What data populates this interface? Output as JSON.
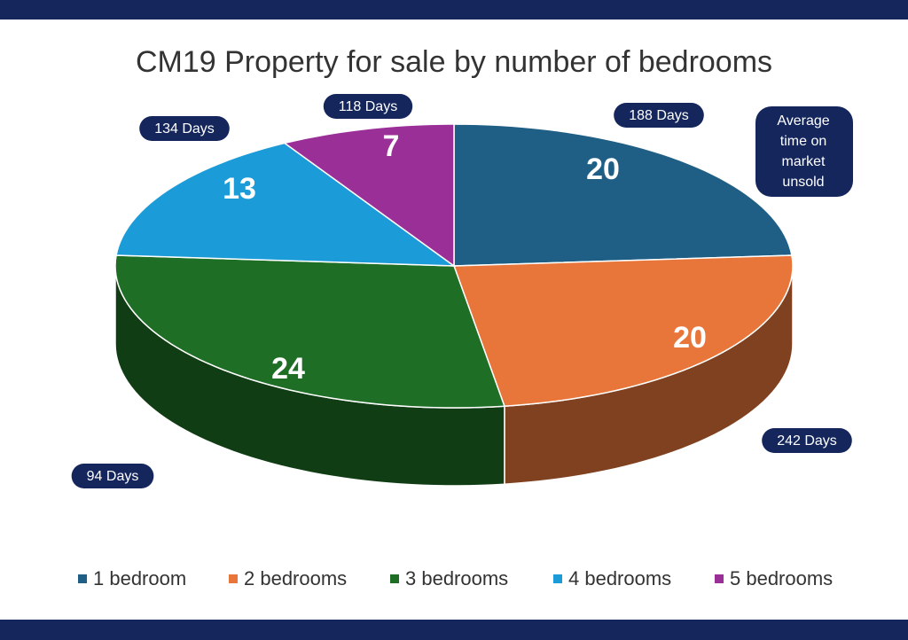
{
  "chart_data": {
    "type": "pie",
    "title": "CM19 Property for sale by number of bedrooms",
    "categories": [
      "1 bedroom",
      "2 bedrooms",
      "3 bedrooms",
      "4 bedrooms",
      "5 bedrooms"
    ],
    "values": [
      20,
      20,
      24,
      13,
      7
    ],
    "colors": [
      "#1f5f86",
      "#e8763a",
      "#1f6e26",
      "#1b9bd8",
      "#9b2f98"
    ],
    "annotations": [
      "188 Days",
      "242 Days",
      "94 Days",
      "134 Days",
      "118 Days"
    ],
    "annotation_box": [
      "Average",
      "time on",
      "market",
      "unsold"
    ],
    "legend": "bottom"
  }
}
